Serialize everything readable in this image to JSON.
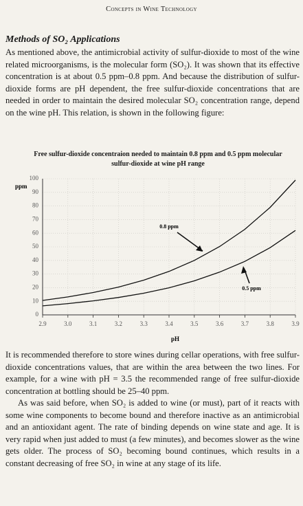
{
  "header": "Concepts in Wine Technology",
  "section_title": "Methods of SO₂ Applications",
  "paragraphs": [
    "As mentioned above, the antimicrobial activity of sulfur-dioxide to most of the wine related microorganisms, is the molecular form (SO₂). It was shown that its effective concentration is at about 0.5 ppm–0.8 ppm. And because the distribution of sulfur-dioxide forms are pH dependent, the free sulfur-dioxide concentrations that are needed in order to maintain the desired molecular SO₂ concentration range, depend on the wine pH. This relation, is shown in the following figure:",
    "It is recommended therefore to store wines during cellar operations, with free sulfur-dioxide concentrations values, that are within the area between the two lines. For example, for a wine with pH = 3.5 the recommended range of free sulfur-dioxide concentration at bottling should be 25–40 ppm.",
    "As was said before, when SO₂ is added to wine (or must), part of it reacts with some wine components to become bound and therefore inactive as an antimicrobial and an antioxidant agent. The rate of binding depends on wine state and age. It is very rapid when just added to must (a few minutes), and becomes slower as the wine gets older. The process of SO₂ becoming bound continues, which results in a constant decreasing of free SO₂ in wine at any stage of its life."
  ],
  "chart_data": {
    "type": "line",
    "title": "Free sulfur-dioxide concentraion needed to maintain 0.8 ppm and 0.5 ppm molecular sulfur-dioxide at wine pH range",
    "x_label": "pH",
    "y_label": "ppm",
    "x": [
      2.9,
      3.0,
      3.1,
      3.2,
      3.3,
      3.4,
      3.5,
      3.6,
      3.7,
      3.8,
      3.9
    ],
    "series": [
      {
        "name": "0.8 ppm",
        "color": "#111111",
        "values": [
          10.6,
          13.2,
          16.4,
          20.4,
          25.5,
          31.9,
          40,
          50.2,
          62.9,
          79,
          99
        ]
      },
      {
        "name": "0.5 ppm",
        "color": "#111111",
        "values": [
          6.6,
          8.3,
          10.3,
          12.8,
          15.9,
          19.9,
          25,
          31.4,
          39.3,
          49.4,
          62
        ]
      }
    ],
    "xlim": [
      2.9,
      3.9
    ],
    "xticks": [
      2.9,
      {
        "value": 3,
        "label": "3.0"
      },
      3.1,
      3.2,
      3.3,
      3.4,
      3.5,
      3.6,
      3.7,
      3.8,
      3.9
    ],
    "ylim": [
      0,
      100
    ],
    "yticks": [
      0,
      10,
      20,
      30,
      40,
      50,
      60,
      70,
      80,
      90,
      100
    ],
    "grid": true
  }
}
